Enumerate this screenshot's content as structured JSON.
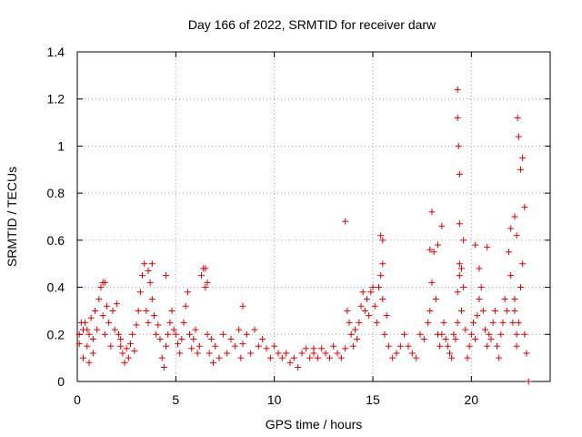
{
  "chart_data": {
    "type": "scatter",
    "title": "Day 166 of 2022, SRMTID for receiver darw",
    "xlabel": "GPS time / hours",
    "ylabel": "SRMTID / TECUs",
    "xlim": [
      0,
      24
    ],
    "ylim": [
      0,
      1.4
    ],
    "grid": true,
    "marker": "+",
    "color": "#e00000",
    "xticks": [
      0,
      5,
      10,
      15,
      20
    ],
    "xtick_labels": [
      "0",
      "5",
      "10",
      "15",
      "20"
    ],
    "yticks": [
      0,
      0.2,
      0.4,
      0.6,
      0.8,
      1.0,
      1.2,
      1.4
    ],
    "ytick_labels": [
      "0",
      "0.2",
      "0.4",
      "0.6",
      "0.8",
      "1",
      "1.2",
      "1.4"
    ],
    "series": [
      {
        "name": "SRMTID",
        "x": [
          0.1,
          0.1,
          0.3,
          0.3,
          0.4,
          0.5,
          0.6,
          0.6,
          0.7,
          0.8,
          0.8,
          0.9,
          1.0,
          1.1,
          1.2,
          1.3,
          1.4,
          1.4,
          1.5,
          1.6,
          1.7,
          1.8,
          1.9,
          2.0,
          2.1,
          2.2,
          2.3,
          2.4,
          2.5,
          2.6,
          2.7,
          2.8,
          2.9,
          3.0,
          3.1,
          3.2,
          3.3,
          3.4,
          3.5,
          3.6,
          3.7,
          3.8,
          3.9,
          4.0,
          4.1,
          4.2,
          4.3,
          4.4,
          4.5,
          4.6,
          4.7,
          4.8,
          4.9,
          5.0,
          5.1,
          5.2,
          5.3,
          5.4,
          5.5,
          5.6,
          5.7,
          5.8,
          5.9,
          6.0,
          6.1,
          6.2,
          6.3,
          6.4,
          6.5,
          6.6,
          6.7,
          6.8,
          6.9,
          7.0,
          7.2,
          7.4,
          7.6,
          7.8,
          8.0,
          8.2,
          8.3,
          8.4,
          8.6,
          8.8,
          9.0,
          9.2,
          9.4,
          9.6,
          9.8,
          10.0,
          10.2,
          10.4,
          10.6,
          10.8,
          11.0,
          11.2,
          11.4,
          11.6,
          11.8,
          12.0,
          12.2,
          12.4,
          12.6,
          12.8,
          13.0,
          13.2,
          13.4,
          13.6,
          13.7,
          13.8,
          13.9,
          14.0,
          14.1,
          14.2,
          14.3,
          14.4,
          14.5,
          14.6,
          14.7,
          14.8,
          14.9,
          15.0,
          15.1,
          15.2,
          15.3,
          15.4,
          15.5,
          15.5,
          15.6,
          15.7,
          15.8,
          16.0,
          16.2,
          16.4,
          16.6,
          16.8,
          17.0,
          17.2,
          17.4,
          17.6,
          17.8,
          17.9,
          18.0,
          18.1,
          18.2,
          18.3,
          18.4,
          18.5,
          18.6,
          18.7,
          18.8,
          18.9,
          19.0,
          19.1,
          19.2,
          19.3,
          19.3,
          19.4,
          19.4,
          19.5,
          19.6,
          19.7,
          19.8,
          19.9,
          20.0,
          20.1,
          20.2,
          20.3,
          20.4,
          20.5,
          20.6,
          20.7,
          20.8,
          20.9,
          21.0,
          21.1,
          21.2,
          21.3,
          21.4,
          21.5,
          21.6,
          21.7,
          21.8,
          21.9,
          22.0,
          22.1,
          22.2,
          22.2,
          22.3,
          22.3,
          22.4,
          22.5,
          22.6,
          22.7,
          22.8,
          22.9,
          0.2,
          0.5,
          1.3,
          2.2,
          3.6,
          3.8,
          4.5,
          6.5,
          6.6,
          8.4,
          12.0,
          13.6,
          15.4,
          15.5,
          17.9,
          18.0,
          18.3,
          18.5,
          19.3,
          19.3,
          19.35,
          19.4,
          19.4,
          19.5,
          19.6,
          20.2,
          20.4,
          20.8,
          22.0,
          22.2,
          22.3,
          22.35,
          22.4,
          22.5,
          22.6,
          22.7
        ],
        "y": [
          0.2,
          0.16,
          0.22,
          0.1,
          0.25,
          0.15,
          0.2,
          0.08,
          0.27,
          0.18,
          0.12,
          0.3,
          0.22,
          0.35,
          0.4,
          0.28,
          0.42,
          0.2,
          0.32,
          0.25,
          0.15,
          0.3,
          0.22,
          0.33,
          0.2,
          0.18,
          0.12,
          0.08,
          0.14,
          0.1,
          0.16,
          0.2,
          0.13,
          0.24,
          0.3,
          0.38,
          0.45,
          0.5,
          0.3,
          0.25,
          0.42,
          0.35,
          0.28,
          0.2,
          0.24,
          0.18,
          0.1,
          0.06,
          0.15,
          0.2,
          0.25,
          0.3,
          0.22,
          0.2,
          0.16,
          0.12,
          0.18,
          0.25,
          0.32,
          0.38,
          0.2,
          0.14,
          0.18,
          0.22,
          0.12,
          0.15,
          0.45,
          0.48,
          0.4,
          0.2,
          0.12,
          0.18,
          0.08,
          0.15,
          0.1,
          0.2,
          0.12,
          0.18,
          0.15,
          0.22,
          0.1,
          0.16,
          0.2,
          0.12,
          0.22,
          0.15,
          0.18,
          0.14,
          0.1,
          0.15,
          0.12,
          0.1,
          0.12,
          0.08,
          0.1,
          0.06,
          0.12,
          0.14,
          0.1,
          0.12,
          0.1,
          0.14,
          0.12,
          0.1,
          0.15,
          0.12,
          0.1,
          0.14,
          0.3,
          0.25,
          0.2,
          0.15,
          0.22,
          0.18,
          0.25,
          0.32,
          0.38,
          0.3,
          0.35,
          0.28,
          0.38,
          0.4,
          0.32,
          0.25,
          0.4,
          0.45,
          0.5,
          0.35,
          0.2,
          0.28,
          0.15,
          0.1,
          0.12,
          0.15,
          0.2,
          0.15,
          0.12,
          0.1,
          0.2,
          0.18,
          0.25,
          0.3,
          0.42,
          0.55,
          0.35,
          0.2,
          0.15,
          0.2,
          0.25,
          0.18,
          0.15,
          0.12,
          0.1,
          0.2,
          0.18,
          0.25,
          0.38,
          0.5,
          0.45,
          0.3,
          0.4,
          0.22,
          0.1,
          0.15,
          0.2,
          0.25,
          0.18,
          0.28,
          0.35,
          0.4,
          0.3,
          0.22,
          0.15,
          0.2,
          0.18,
          0.25,
          0.3,
          0.15,
          0.1,
          0.2,
          0.25,
          0.35,
          0.3,
          0.55,
          0.45,
          0.25,
          0.35,
          0.3,
          0.2,
          0.15,
          0.25,
          0.4,
          0.5,
          0.2,
          0.12,
          0.0,
          0.25,
          0.22,
          0.42,
          0.15,
          0.47,
          0.5,
          0.45,
          0.48,
          0.42,
          0.32,
          0.14,
          0.68,
          0.62,
          0.6,
          0.56,
          0.72,
          0.58,
          0.66,
          1.24,
          1.12,
          1.0,
          0.88,
          0.67,
          0.48,
          0.6,
          0.58,
          0.48,
          0.57,
          0.65,
          0.7,
          0.62,
          1.12,
          1.04,
          0.9,
          0.95,
          0.74
        ]
      }
    ]
  }
}
